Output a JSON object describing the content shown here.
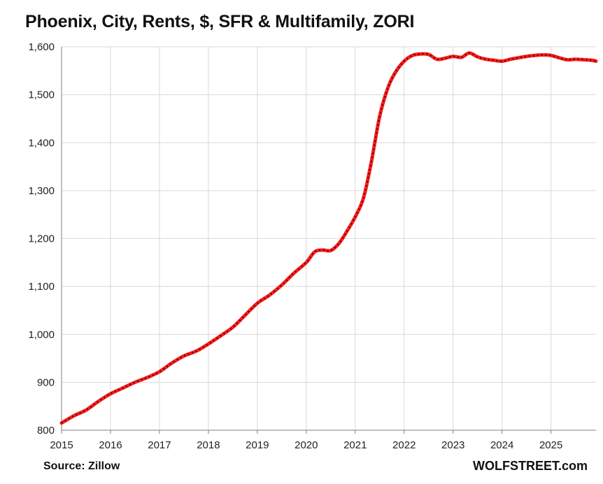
{
  "chart_data": {
    "type": "line",
    "title": "Phoenix, City, Rents, $, SFR & Multifamily, ZORI",
    "xlabel": "",
    "ylabel": "",
    "xlim": [
      2015,
      2025.92
    ],
    "ylim": [
      800,
      1600
    ],
    "x_ticks": [
      "2015",
      "2016",
      "2017",
      "2018",
      "2019",
      "2020",
      "2021",
      "2022",
      "2023",
      "2024",
      "2025"
    ],
    "y_ticks": [
      "800",
      "900",
      "1,000",
      "1,100",
      "1,200",
      "1,300",
      "1,400",
      "1,500",
      "1,600"
    ],
    "grid": true,
    "line_color": "#ff1a1a",
    "marker_color": "#111111",
    "series": [
      {
        "name": "",
        "x": [
          2015,
          2015.25,
          2015.5,
          2015.75,
          2016,
          2016.25,
          2016.5,
          2016.75,
          2017,
          2017.25,
          2017.5,
          2017.75,
          2018,
          2018.25,
          2018.5,
          2018.75,
          2019,
          2019.25,
          2019.5,
          2019.75,
          2020,
          2020.17,
          2020.33,
          2020.5,
          2020.67,
          2020.83,
          2021,
          2021.17,
          2021.33,
          2021.5,
          2021.67,
          2021.83,
          2022,
          2022.17,
          2022.33,
          2022.5,
          2022.67,
          2022.83,
          2023,
          2023.17,
          2023.33,
          2023.5,
          2023.67,
          2023.83,
          2024,
          2024.17,
          2024.33,
          2024.5,
          2024.67,
          2024.83,
          2025,
          2025.17,
          2025.33,
          2025.5,
          2025.67,
          2025.83,
          2025.92
        ],
        "values": [
          815,
          830,
          842,
          860,
          876,
          888,
          900,
          910,
          922,
          940,
          955,
          965,
          980,
          997,
          1015,
          1040,
          1065,
          1082,
          1103,
          1128,
          1150,
          1172,
          1176,
          1175,
          1190,
          1215,
          1245,
          1285,
          1360,
          1455,
          1515,
          1548,
          1570,
          1582,
          1585,
          1584,
          1574,
          1576,
          1580,
          1578,
          1587,
          1579,
          1574,
          1572,
          1570,
          1574,
          1577,
          1580,
          1582,
          1583,
          1582,
          1577,
          1573,
          1574,
          1573,
          1572,
          1570
        ]
      }
    ]
  },
  "footer": {
    "source": "Source: Zillow",
    "brand": "WOLFSTREET.com"
  }
}
